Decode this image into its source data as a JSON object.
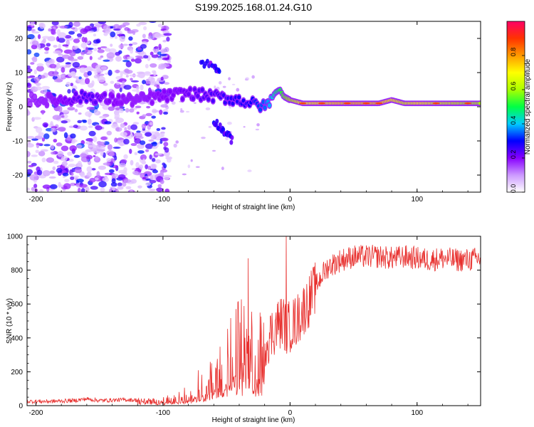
{
  "figure": {
    "title": "S199.2025.168.01.24.G10"
  },
  "colors": {
    "snr_line": "#e8312f",
    "ridge_color": "#39e04a",
    "scatter_color": "#b48cff",
    "colorbar_stops": [
      "#ffffff",
      "#cc99ff",
      "#8800ff",
      "#0000ff",
      "#00ccff",
      "#00ff44",
      "#aaff00",
      "#ffff00",
      "#ff9900",
      "#ff3300",
      "#ff0066"
    ]
  },
  "chart_data": [
    {
      "type": "heatmap",
      "title": "S199.2025.168.01.24.G10",
      "xlabel": "Height of straight line (km)",
      "ylabel": "Frequency (Hz)",
      "xlim": [
        -207,
        150
      ],
      "ylim": [
        -25,
        25
      ],
      "xticks": [
        -200,
        -100,
        0,
        100
      ],
      "xtick_labels": [
        "-200",
        "-100",
        "0",
        "100"
      ],
      "yticks": [
        -20,
        -10,
        0,
        10,
        20
      ],
      "ytick_labels": [
        "-20",
        "-10",
        "0",
        "10",
        "20"
      ],
      "grid": false,
      "colorbar": {
        "label": "Normalized spectral amplitude",
        "range": [
          0,
          1
        ],
        "ticks": [
          0.0,
          0.2,
          0.4,
          0.6,
          0.8
        ],
        "tick_labels": [
          "0.0",
          "0.2",
          "0.4",
          "0.6",
          "0.8"
        ]
      },
      "ridge": {
        "x": [
          -207,
          -180,
          -160,
          -140,
          -120,
          -100,
          -80,
          -60,
          -40,
          -30,
          -20,
          -15,
          -12,
          -8,
          -5,
          0,
          10,
          30,
          50,
          70,
          80,
          90,
          100,
          120,
          150
        ],
        "frequency": [
          2,
          2,
          3,
          2,
          2,
          3,
          4,
          3,
          2,
          1,
          0,
          2,
          4,
          5,
          3,
          2,
          1,
          1,
          1,
          1,
          2,
          1,
          1,
          1,
          1
        ],
        "amplitude": [
          0.15,
          0.2,
          0.25,
          0.2,
          0.18,
          0.2,
          0.22,
          0.25,
          0.28,
          0.3,
          0.35,
          0.4,
          0.45,
          0.5,
          0.55,
          0.6,
          0.7,
          0.72,
          0.75,
          0.75,
          0.7,
          0.65,
          0.7,
          0.65,
          0.6
        ]
      },
      "noise_extent": {
        "x_range": [
          -207,
          -95
        ],
        "frequency_range": [
          -25,
          25
        ]
      },
      "branches": [
        {
          "x": [
            -70,
            -60,
            -55
          ],
          "frequency": [
            13,
            12,
            10
          ]
        },
        {
          "x": [
            -60,
            -55,
            -50,
            -45
          ],
          "frequency": [
            -4,
            -6,
            -8,
            -10
          ]
        }
      ]
    },
    {
      "type": "line",
      "title": "",
      "xlabel": "Height of straight line (km)",
      "ylabel": "SNR (10 * v/v)",
      "xlim": [
        -207,
        150
      ],
      "ylim": [
        0,
        1000
      ],
      "xticks": [
        -200,
        -100,
        0,
        100
      ],
      "xtick_labels": [
        "-200",
        "-100",
        "0",
        "100"
      ],
      "yticks": [
        0,
        200,
        400,
        600,
        800,
        1000
      ],
      "ytick_labels": [
        "0",
        "200",
        "400",
        "600",
        "800",
        "1000"
      ],
      "grid": false,
      "series": [
        {
          "x": [
            -207,
            -190,
            -170,
            -160,
            -150,
            -130,
            -110,
            -100,
            -90,
            -80,
            -70,
            -60,
            -50,
            -45,
            -40,
            -35,
            -30,
            -25,
            -20,
            -15,
            -10,
            -5,
            -3,
            0,
            5,
            10,
            15,
            20,
            25,
            30,
            40,
            50,
            60,
            70,
            80,
            90,
            100,
            110,
            120,
            130,
            140,
            150
          ],
          "y": [
            25,
            25,
            30,
            40,
            30,
            35,
            30,
            30,
            40,
            70,
            130,
            180,
            250,
            320,
            380,
            380,
            300,
            280,
            380,
            420,
            480,
            500,
            450,
            470,
            500,
            560,
            620,
            700,
            770,
            820,
            860,
            880,
            880,
            880,
            870,
            880,
            870,
            860,
            870,
            860,
            860,
            870
          ]
        }
      ],
      "peak_annotations": {
        "x": [
          -33,
          -3
        ],
        "y": [
          870,
          1000
        ]
      }
    }
  ]
}
